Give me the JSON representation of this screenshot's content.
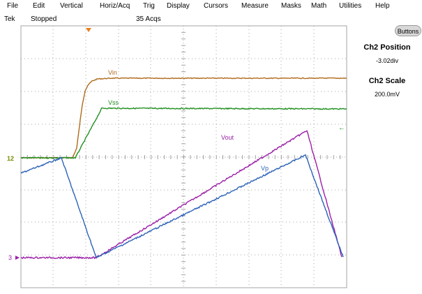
{
  "menu": [
    "File",
    "Edit",
    "Vertical",
    "Horiz/Acq",
    "Trig",
    "Display",
    "Cursors",
    "Measure",
    "Masks",
    "Math",
    "Utilities",
    "Help"
  ],
  "status": {
    "brand": "Tek",
    "run_state": "Stopped",
    "acquisitions": "35 Acqs"
  },
  "buttons_label": "Buttons",
  "side_panel": {
    "position_title": "Ch2 Position",
    "position_value": "-3.02div",
    "scale_title": "Ch2 Scale",
    "scale_value": "200.0mV"
  },
  "markers": {
    "ch12_ground": "12",
    "ch3_ground": "3"
  },
  "colors": {
    "graticule": "#a4a4a4",
    "vin": "#b06a1c",
    "vss": "#1f8f1f",
    "vout": "#9b1fa8",
    "vp": "#2c62b8",
    "trigger": "#e8821e",
    "ground_marker": "#7a8a00"
  },
  "waveforms": [
    {
      "id": "vin",
      "label": "Vin"
    },
    {
      "id": "vss",
      "label": "Vss"
    },
    {
      "id": "vout",
      "label": "Vout"
    },
    {
      "id": "vp",
      "label": "Vp"
    }
  ]
}
